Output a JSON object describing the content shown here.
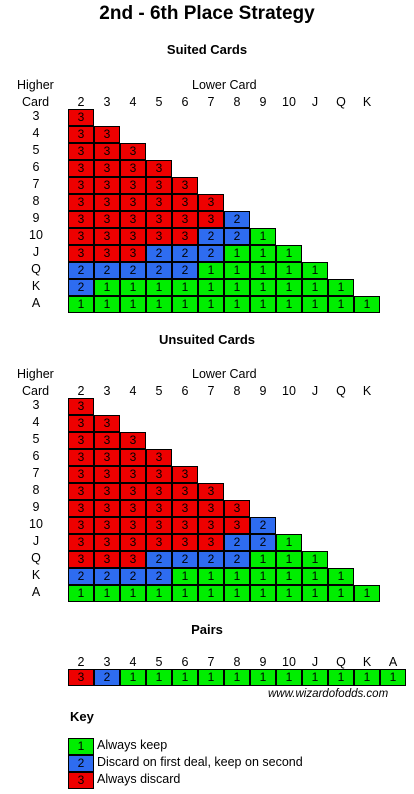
{
  "title": "2nd - 6th Place Strategy",
  "lower_card_label": "Lower Card",
  "higher_card_label": [
    "Higher",
    "Card"
  ],
  "columns": [
    "2",
    "3",
    "4",
    "5",
    "6",
    "7",
    "8",
    "9",
    "10",
    "J",
    "Q",
    "K"
  ],
  "suited": {
    "title": "Suited Cards",
    "rows": [
      {
        "label": "3",
        "cells": [
          3
        ]
      },
      {
        "label": "4",
        "cells": [
          3,
          3
        ]
      },
      {
        "label": "5",
        "cells": [
          3,
          3,
          3
        ]
      },
      {
        "label": "6",
        "cells": [
          3,
          3,
          3,
          3
        ]
      },
      {
        "label": "7",
        "cells": [
          3,
          3,
          3,
          3,
          3
        ]
      },
      {
        "label": "8",
        "cells": [
          3,
          3,
          3,
          3,
          3,
          3
        ]
      },
      {
        "label": "9",
        "cells": [
          3,
          3,
          3,
          3,
          3,
          3,
          2
        ]
      },
      {
        "label": "10",
        "cells": [
          3,
          3,
          3,
          3,
          3,
          2,
          2,
          1
        ]
      },
      {
        "label": "J",
        "cells": [
          3,
          3,
          3,
          2,
          2,
          2,
          1,
          1,
          1
        ]
      },
      {
        "label": "Q",
        "cells": [
          2,
          2,
          2,
          2,
          2,
          1,
          1,
          1,
          1,
          1
        ]
      },
      {
        "label": "K",
        "cells": [
          2,
          1,
          1,
          1,
          1,
          1,
          1,
          1,
          1,
          1,
          1
        ]
      },
      {
        "label": "A",
        "cells": [
          1,
          1,
          1,
          1,
          1,
          1,
          1,
          1,
          1,
          1,
          1,
          1
        ]
      }
    ]
  },
  "unsuited": {
    "title": "Unsuited Cards",
    "rows": [
      {
        "label": "3",
        "cells": [
          3
        ]
      },
      {
        "label": "4",
        "cells": [
          3,
          3
        ]
      },
      {
        "label": "5",
        "cells": [
          3,
          3,
          3
        ]
      },
      {
        "label": "6",
        "cells": [
          3,
          3,
          3,
          3
        ]
      },
      {
        "label": "7",
        "cells": [
          3,
          3,
          3,
          3,
          3
        ]
      },
      {
        "label": "8",
        "cells": [
          3,
          3,
          3,
          3,
          3,
          3
        ]
      },
      {
        "label": "9",
        "cells": [
          3,
          3,
          3,
          3,
          3,
          3,
          3
        ]
      },
      {
        "label": "10",
        "cells": [
          3,
          3,
          3,
          3,
          3,
          3,
          3,
          2
        ]
      },
      {
        "label": "J",
        "cells": [
          3,
          3,
          3,
          3,
          3,
          3,
          2,
          2,
          1
        ]
      },
      {
        "label": "Q",
        "cells": [
          3,
          3,
          3,
          2,
          2,
          2,
          2,
          1,
          1,
          1
        ]
      },
      {
        "label": "K",
        "cells": [
          2,
          2,
          2,
          2,
          1,
          1,
          1,
          1,
          1,
          1,
          1
        ]
      },
      {
        "label": "A",
        "cells": [
          1,
          1,
          1,
          1,
          1,
          1,
          1,
          1,
          1,
          1,
          1,
          1
        ]
      }
    ]
  },
  "pairs": {
    "title": "Pairs",
    "columns": [
      "2",
      "3",
      "4",
      "5",
      "6",
      "7",
      "8",
      "9",
      "10",
      "J",
      "Q",
      "K",
      "A"
    ],
    "cells": [
      3,
      2,
      1,
      1,
      1,
      1,
      1,
      1,
      1,
      1,
      1,
      1,
      1
    ]
  },
  "footer": "www.wizardofodds.com",
  "key": {
    "title": "Key",
    "items": [
      {
        "value": 1,
        "label": "Always keep"
      },
      {
        "value": 2,
        "label": "Discard on first deal, keep on second"
      },
      {
        "value": 3,
        "label": "Always discard"
      }
    ]
  },
  "colors": {
    "1": "#00ee00",
    "2": "#2e6cf0",
    "3": "#ee0000"
  }
}
